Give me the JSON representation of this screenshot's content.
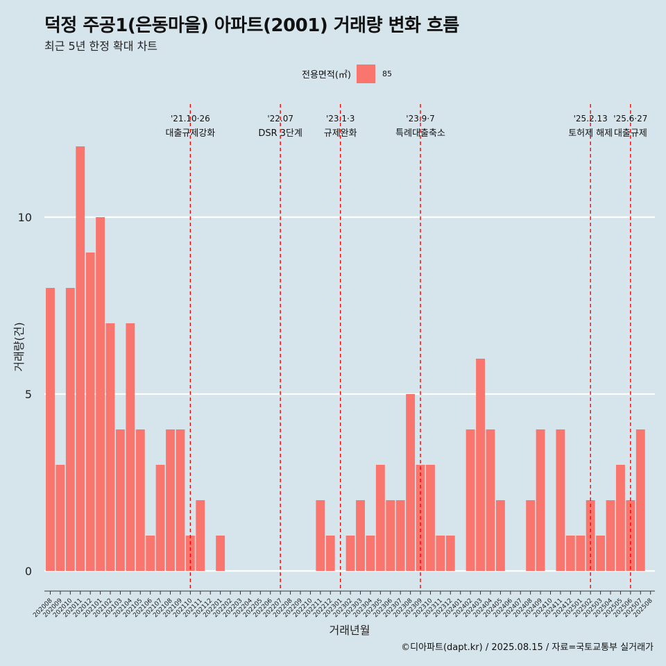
{
  "title": "덕정 주공1(은동마을) 아파트(2001) 거래량 변화 흐름",
  "subtitle": "최근 5년 한정 확대 차트",
  "legend": {
    "title": "전용면적(㎡)",
    "entry": "85",
    "color": "#f8766d"
  },
  "caption": "©디아파트(dapt.kr) / 2025.08.15 / 자료=국토교통부 실거래가",
  "chart_data": {
    "type": "bar",
    "xlabel": "거래년월",
    "ylabel": "거래량(건)",
    "ylim": [
      0,
      12
    ],
    "yticks": [
      0,
      5,
      10
    ],
    "grid": true,
    "legend_position": "top",
    "bar_color": "#f8766d",
    "categories": [
      "202008",
      "202009",
      "202010",
      "202011",
      "202012",
      "202101",
      "202102",
      "202103",
      "202104",
      "202105",
      "202106",
      "202107",
      "202108",
      "202109",
      "202110",
      "202111",
      "202112",
      "202201",
      "202202",
      "202203",
      "202204",
      "202205",
      "202206",
      "202207",
      "202208",
      "202209",
      "202210",
      "202211",
      "202212",
      "202301",
      "202302",
      "202303",
      "202304",
      "202305",
      "202306",
      "202307",
      "202308",
      "202309",
      "202310",
      "202311",
      "202312",
      "202401",
      "202402",
      "202403",
      "202404",
      "202405",
      "202406",
      "202407",
      "202408",
      "202409",
      "202410",
      "202411",
      "202412",
      "202501",
      "202502",
      "202503",
      "202504",
      "202505",
      "202506",
      "202507",
      "202508"
    ],
    "series": [
      {
        "name": "85",
        "values": [
          8,
          3,
          8,
          12,
          9,
          10,
          7,
          4,
          7,
          4,
          1,
          3,
          4,
          4,
          1,
          2,
          0,
          1,
          0,
          0,
          0,
          0,
          0,
          0,
          0,
          0,
          0,
          2,
          1,
          0,
          1,
          2,
          1,
          3,
          2,
          2,
          5,
          3,
          3,
          1,
          1,
          0,
          4,
          6,
          4,
          2,
          0,
          0,
          2,
          4,
          0,
          4,
          1,
          1,
          2,
          1,
          2,
          3,
          2,
          4,
          0
        ]
      }
    ],
    "annotations": [
      {
        "at": "202110",
        "date": "'21.10·26",
        "label": "대출규제강화"
      },
      {
        "at": "202207",
        "date": "'22.07",
        "label": "DSR 3단계"
      },
      {
        "at": "202301",
        "date": "'23.1·3",
        "label": "규제완화"
      },
      {
        "at": "202309",
        "date": "'23.9·7",
        "label": "특례대출축소"
      },
      {
        "at": "202502",
        "date": "'25.2.13",
        "label": "토허제 해제"
      },
      {
        "at": "202506",
        "date": "'25.6·27",
        "label": "대출규제"
      }
    ]
  }
}
